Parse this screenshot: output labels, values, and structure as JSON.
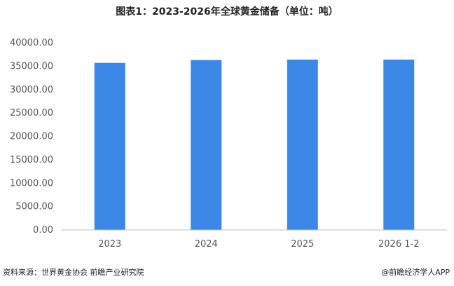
{
  "title": "图表1：2023-2026年全球黄金储备（单位：吨）",
  "footer": {
    "source": "资料来源：世界黄金协会  前瞻产业研究院",
    "brand": "@前瞻经济学人APP"
  },
  "colors": {
    "bar": "#3b87e6",
    "axis": "#bfbfbf",
    "text": "#555555"
  },
  "chart_data": {
    "type": "bar",
    "categories": [
      "2023",
      "2024",
      "2025",
      "2026 1-2"
    ],
    "values": [
      35700,
      36300,
      36400,
      36400
    ],
    "title": "图表1：2023-2026年全球黄金储备（单位：吨）",
    "xlabel": "",
    "ylabel": "",
    "ylim": [
      0,
      40000
    ],
    "yticks": [
      "0.00",
      "5000.00",
      "10000.00",
      "15000.00",
      "20000.00",
      "25000.00",
      "30000.00",
      "35000.00",
      "40000.00"
    ],
    "grid": false,
    "legend": "none"
  }
}
